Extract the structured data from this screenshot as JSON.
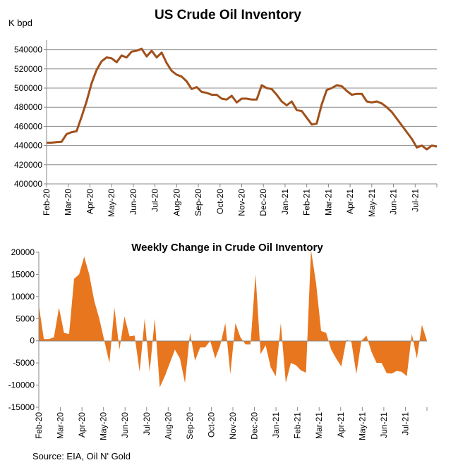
{
  "source": "Source: EIA, Oil N' Gold",
  "chart_data": [
    {
      "type": "line",
      "title": "US Crude Oil Inventory",
      "ylabel": "K bpd",
      "ylim": [
        400000,
        550000
      ],
      "yticks": [
        400000,
        420000,
        440000,
        460000,
        480000,
        500000,
        520000,
        540000
      ],
      "ytick_labels": [
        "400000",
        "420000",
        "440000",
        "460000",
        "480000",
        "500000",
        "520000",
        "540000"
      ],
      "months": [
        "Feb-20",
        "Mar-20",
        "Apr-20",
        "May-20",
        "Jun-20",
        "Jul-20",
        "Aug-20",
        "Sep-20",
        "Oct-20",
        "Nov-20",
        "Dec-20",
        "Jan-21",
        "Feb-21",
        "Mar-21",
        "Apr-21",
        "May-21",
        "Jun-21",
        "Jul-21"
      ],
      "color": "#a0501a",
      "grid": "horizontal",
      "series": [
        {
          "values": [
            443000,
            443000,
            443500,
            444000,
            452000,
            454000,
            455000,
            470000,
            486000,
            505000,
            519000,
            528000,
            532000,
            531000,
            527000,
            534000,
            532000,
            538000,
            539000,
            541000,
            533000,
            539000,
            532000,
            537000,
            526000,
            518000,
            514000,
            512000,
            507000,
            499000,
            501000,
            496000,
            495000,
            493000,
            493000,
            489000,
            488000,
            492000,
            485000,
            489000,
            489000,
            488000,
            488000,
            503000,
            500000,
            499000,
            493000,
            486000,
            482000,
            486000,
            477000,
            476000,
            469000,
            462000,
            463000,
            483000,
            498000,
            500000,
            503000,
            502000,
            497000,
            493000,
            494000,
            494000,
            486000,
            485000,
            486000,
            484000,
            480000,
            475000,
            468000,
            461000,
            454000,
            447000,
            438000,
            440000,
            436000,
            440000,
            439000
          ]
        }
      ]
    },
    {
      "type": "area",
      "title": "Weekly Change in Crude Oil Inventory",
      "ylim": [
        -15000,
        20000
      ],
      "yticks": [
        -15000,
        -10000,
        -5000,
        0,
        5000,
        10000,
        15000,
        20000
      ],
      "ytick_labels": [
        "-15000",
        "-10000",
        "-5000",
        "0",
        "5000",
        "10000",
        "15000",
        "20000"
      ],
      "months": [
        "Feb-20",
        "Mar-20",
        "Apr-20",
        "May-20",
        "Jun-20",
        "Jul-20",
        "Aug-20",
        "Sep-20",
        "Oct-20",
        "Nov-20",
        "Dec-20",
        "Jan-21",
        "Feb-21",
        "Mar-21",
        "Apr-21",
        "May-21",
        "Jun-21",
        "Jul-21"
      ],
      "color": "#e8761e",
      "grid": "none",
      "series": [
        {
          "values": [
            8000,
            400,
            400,
            800,
            7500,
            1800,
            1500,
            14000,
            15000,
            19000,
            15000,
            9000,
            5000,
            0,
            -5000,
            7500,
            -2000,
            5500,
            1000,
            1200,
            -7000,
            5000,
            -7000,
            5000,
            -10500,
            -8000,
            -5000,
            -2000,
            -4000,
            -9500,
            1800,
            -4500,
            -1500,
            -1500,
            0,
            -4000,
            -1000,
            4000,
            -7500,
            4000,
            800,
            -800,
            -800,
            15000,
            -3000,
            -1000,
            -6000,
            -8000,
            4000,
            -9500,
            -5000,
            -5500,
            -6700,
            -7200,
            20500,
            13000,
            2200,
            1800,
            -2000,
            -4000,
            -5800,
            200,
            -200,
            -7500,
            0,
            1200,
            -2500,
            -5000,
            -5000,
            -7300,
            -7400,
            -6800,
            -7000,
            -8000,
            1600,
            -4000,
            3600,
            0
          ]
        }
      ]
    }
  ]
}
